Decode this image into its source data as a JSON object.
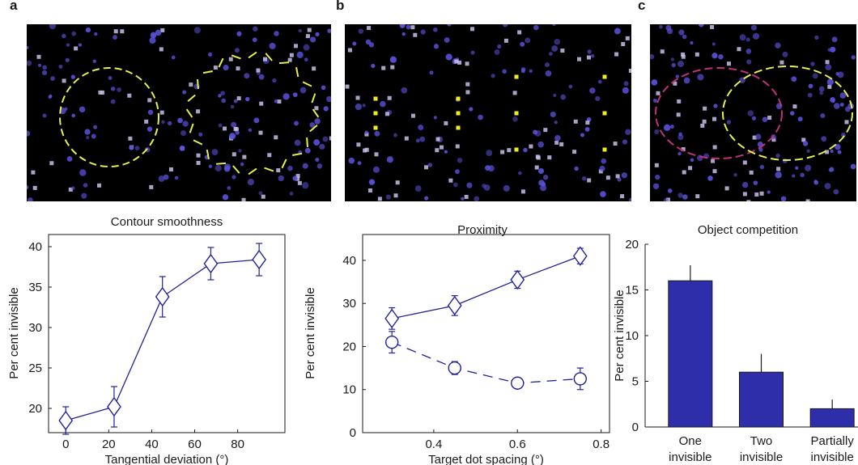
{
  "panels": {
    "a": "a",
    "b": "b",
    "c": "c"
  },
  "stimuli": [
    {
      "panel": "a",
      "guides": [
        {
          "shape": "circle",
          "color": "#e8f04a"
        },
        {
          "shape": "radial-segments",
          "color": "#e8f04a"
        }
      ]
    },
    {
      "panel": "b",
      "guides": [
        {
          "shape": "dot-columns",
          "color": "#f2ee1c"
        }
      ]
    },
    {
      "panel": "c",
      "guides": [
        {
          "shape": "ellipse",
          "color": "#c0307f"
        },
        {
          "shape": "ellipse",
          "color": "#e8f04a"
        }
      ]
    }
  ],
  "colors": {
    "series": "#22229a",
    "bar": "#2e2eaa",
    "background_dots": "#5a50d8",
    "highlight_dots": "#c8c0e8"
  },
  "chart_data": [
    {
      "type": "line",
      "title": "Contour smoothness",
      "xlabel": "Tangential deviation (°)",
      "ylabel": "Per cent invisible",
      "xlim": [
        -8,
        102
      ],
      "ylim": [
        17,
        41.5
      ],
      "xticks": [
        0,
        20,
        40,
        60,
        80
      ],
      "yticks": [
        20,
        25,
        30,
        35,
        40
      ],
      "series": [
        {
          "marker": "diamond",
          "dashed": false,
          "x": [
            0,
            22.5,
            45,
            67.5,
            90
          ],
          "y": [
            18.5,
            20.2,
            33.8,
            37.9,
            38.4
          ],
          "err": [
            1.7,
            2.5,
            2.5,
            2.0,
            2.0
          ]
        }
      ]
    },
    {
      "type": "line",
      "title": "Proximity",
      "xlabel": "Target dot spacing (°)",
      "ylabel": "Per cent invisible",
      "xlim": [
        0.23,
        0.82
      ],
      "ylim": [
        0,
        46
      ],
      "xticks": [
        0.4,
        0.6,
        0.8
      ],
      "yticks": [
        0,
        10,
        20,
        30,
        40
      ],
      "series": [
        {
          "marker": "diamond",
          "dashed": false,
          "x": [
            0.3,
            0.45,
            0.6,
            0.75
          ],
          "y": [
            26.5,
            29.5,
            35.5,
            41.0
          ],
          "err": [
            2.5,
            2.3,
            2.0,
            1.8
          ]
        },
        {
          "marker": "circle",
          "dashed": true,
          "x": [
            0.3,
            0.45,
            0.6,
            0.75
          ],
          "y": [
            21.0,
            15.0,
            11.5,
            12.5
          ],
          "err": [
            2.5,
            1.5,
            0,
            2.5
          ]
        }
      ]
    },
    {
      "type": "bar",
      "title": "Object competition",
      "ylabel": "Per cent invisible",
      "ylim": [
        0,
        20
      ],
      "yticks": [
        0,
        5,
        10,
        15,
        20
      ],
      "categories": [
        [
          "One",
          "invisible"
        ],
        [
          "Two",
          "invisible"
        ],
        [
          "Partially",
          "invisible"
        ]
      ],
      "values": [
        16.0,
        6.0,
        2.0
      ],
      "err": [
        1.7,
        2.0,
        1.0
      ]
    }
  ]
}
